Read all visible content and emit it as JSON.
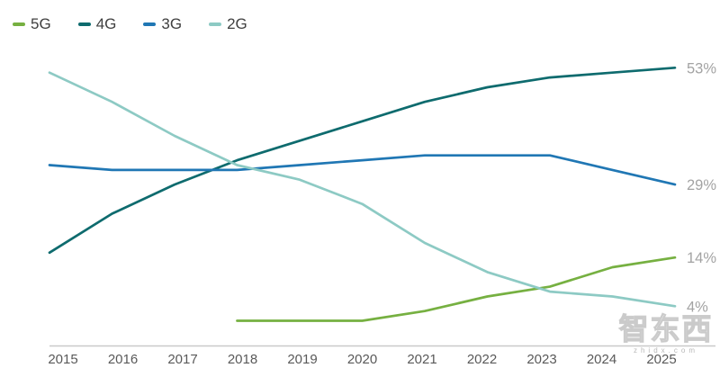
{
  "chart_data": {
    "type": "line",
    "title": "",
    "xlabel": "",
    "ylabel": "",
    "grid": false,
    "legend_position": "top-left",
    "x": [
      "2015",
      "2016",
      "2017",
      "2018",
      "2019",
      "2020",
      "2021",
      "2022",
      "2023",
      "2024",
      "2025"
    ],
    "ylim": [
      0,
      57
    ],
    "series": [
      {
        "name": "5G",
        "color": "#76b041",
        "end_label": "14%",
        "values": [
          null,
          null,
          null,
          1,
          1,
          1,
          3,
          6,
          8,
          12,
          14
        ]
      },
      {
        "name": "4G",
        "color": "#0e6b6e",
        "end_label": "53%",
        "values": [
          15,
          23,
          29,
          34,
          38,
          42,
          46,
          49,
          51,
          52,
          53
        ]
      },
      {
        "name": "3G",
        "color": "#2077b4",
        "end_label": "29%",
        "values": [
          33,
          32,
          32,
          32,
          33,
          34,
          35,
          35,
          35,
          32,
          29
        ]
      },
      {
        "name": "2G",
        "color": "#8dcac4",
        "end_label": "4%",
        "values": [
          52,
          46,
          39,
          33,
          30,
          25,
          17,
          11,
          7,
          6,
          4
        ]
      }
    ]
  },
  "colors": {
    "axis_line": "#c9c9c9",
    "tick_label": "#595959",
    "value_label": "#a3a3a3",
    "legend_label": "#404040"
  },
  "watermark": {
    "cn": "智东西",
    "en": "zhidx.com"
  }
}
